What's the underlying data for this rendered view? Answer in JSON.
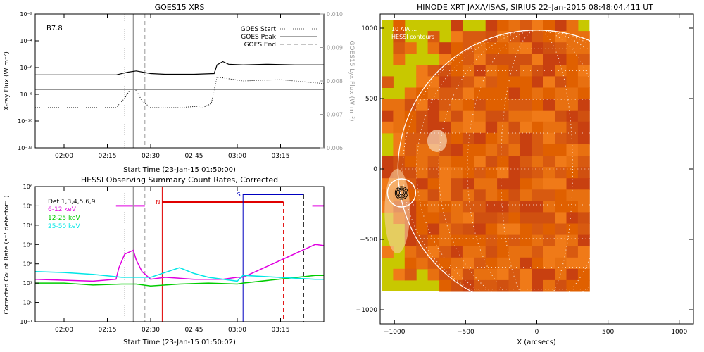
{
  "chart_data": [
    {
      "type": "line",
      "title": "GOES15 XRS",
      "flare_class": "B7.8",
      "xlabel": "Start Time (23-Jan-15 01:50:00)",
      "ylabel": "X-ray Flux (W m⁻²)",
      "ylabel_right": "GOES15 Lyx Flux (W m⁻²)",
      "x_ticks": [
        "02:00",
        "02:15",
        "02:30",
        "02:45",
        "03:00",
        "03:15"
      ],
      "x_tick_minutes": [
        10,
        25,
        40,
        55,
        70,
        85
      ],
      "xlim_minutes": [
        0,
        100
      ],
      "ylog_lim": [
        -12,
        -2
      ],
      "y_ticks": [
        "10⁻¹²",
        "10⁻¹⁰",
        "10⁻⁸",
        "10⁻⁶",
        "10⁻⁴",
        "10⁻²"
      ],
      "y_tick_exp": [
        -12,
        -10,
        -8,
        -6,
        -4,
        -2
      ],
      "y2_ticks": [
        "0.006",
        "0.007",
        "0.008",
        "0.009",
        "0.010"
      ],
      "legend": {
        "start": "GOES Start",
        "peak": "GOES Peak",
        "end": "GOES End"
      },
      "event_minutes": {
        "start": 31,
        "peak": 34,
        "end": 38
      },
      "series": [
        {
          "name": "long",
          "log_flux": [
            [
              0,
              -6.55
            ],
            [
              15,
              -6.55
            ],
            [
              28,
              -6.55
            ],
            [
              32,
              -6.35
            ],
            [
              35,
              -6.25
            ],
            [
              40,
              -6.45
            ],
            [
              45,
              -6.5
            ],
            [
              55,
              -6.5
            ],
            [
              62,
              -6.45
            ],
            [
              63,
              -5.8
            ],
            [
              65,
              -5.55
            ],
            [
              67,
              -5.75
            ],
            [
              72,
              -5.8
            ],
            [
              80,
              -5.75
            ],
            [
              90,
              -5.8
            ],
            [
              100,
              -5.8
            ]
          ]
        },
        {
          "name": "short",
          "log_flux": [
            [
              0,
              -9.0
            ],
            [
              28,
              -9.0
            ],
            [
              31,
              -8.3
            ],
            [
              33,
              -7.6
            ],
            [
              35,
              -7.7
            ],
            [
              37,
              -8.5
            ],
            [
              40,
              -9.0
            ],
            [
              50,
              -9.0
            ],
            [
              56,
              -8.9
            ],
            [
              58,
              -9.0
            ],
            [
              61,
              -8.7
            ],
            [
              63,
              -6.7
            ],
            [
              66,
              -6.8
            ],
            [
              72,
              -7.0
            ],
            [
              85,
              -6.9
            ],
            [
              100,
              -7.2
            ]
          ]
        },
        {
          "name": "lyx",
          "log_flux": [
            [
              0,
              -7.65
            ],
            [
              100,
              -7.65
            ]
          ]
        }
      ]
    },
    {
      "type": "line",
      "title": "HESSI Observing Summary Count Rates, Corrected",
      "xlabel": "Start Time (23-Jan-15 01:50:02)",
      "ylabel": "Corrected Count Rate (s⁻¹ detector⁻¹)",
      "x_ticks": [
        "02:00",
        "02:15",
        "02:30",
        "02:45",
        "03:00",
        "03:15"
      ],
      "x_tick_minutes": [
        10,
        25,
        40,
        55,
        70,
        85
      ],
      "xlim_minutes": [
        0,
        100
      ],
      "ylog_lim": [
        -1,
        6
      ],
      "y_ticks": [
        "10⁻¹",
        "10⁰",
        "10¹",
        "10²",
        "10³",
        "10⁴",
        "10⁵",
        "10⁶"
      ],
      "y_tick_exp": [
        -1,
        0,
        1,
        2,
        3,
        4,
        5,
        6
      ],
      "legend": [
        "Det 1,3,4,5,6,9",
        "6-12 keV",
        "12-25 keV",
        "25-50 keV"
      ],
      "colors": {
        "6-12 keV": "#e000e0",
        "12-25 keV": "#00cc00",
        "25-50 keV": "#00e6e6",
        "night": "#e00000",
        "saa": "#0000c0"
      },
      "flags": {
        "night_label": "N",
        "saa_label": "S"
      },
      "series": [
        {
          "name": "6-12 keV",
          "log_counts": [
            [
              0,
              1.2
            ],
            [
              20,
              1.1
            ],
            [
              28,
              1.2
            ],
            [
              29,
              1.8
            ],
            [
              31,
              2.5
            ],
            [
              34,
              2.7
            ],
            [
              35,
              2.2
            ],
            [
              37,
              1.6
            ],
            [
              40,
              1.2
            ],
            [
              45,
              1.3
            ],
            [
              55,
              1.2
            ],
            [
              65,
              1.2
            ],
            [
              70,
              1.3
            ],
            [
              72,
              1.3
            ],
            [
              97,
              3.0
            ],
            [
              100,
              2.95
            ]
          ]
        },
        {
          "name": "12-25 keV",
          "log_counts": [
            [
              0,
              1.0
            ],
            [
              10,
              1.0
            ],
            [
              20,
              0.9
            ],
            [
              30,
              0.95
            ],
            [
              35,
              0.95
            ],
            [
              40,
              0.85
            ],
            [
              50,
              0.95
            ],
            [
              60,
              1.0
            ],
            [
              70,
              0.95
            ],
            [
              72,
              1.0
            ],
            [
              97,
              1.4
            ],
            [
              100,
              1.4
            ]
          ]
        },
        {
          "name": "25-50 keV",
          "log_counts": [
            [
              0,
              1.6
            ],
            [
              10,
              1.55
            ],
            [
              20,
              1.45
            ],
            [
              30,
              1.3
            ],
            [
              40,
              1.3
            ],
            [
              45,
              1.55
            ],
            [
              50,
              1.8
            ],
            [
              55,
              1.5
            ],
            [
              60,
              1.3
            ],
            [
              70,
              1.1
            ],
            [
              72,
              1.4
            ],
            [
              97,
              1.2
            ],
            [
              100,
              1.2
            ]
          ]
        }
      ],
      "event_minutes": {
        "start": 31,
        "peak": 34,
        "end": 38
      },
      "night_minutes": [
        44,
        86
      ],
      "saa_minutes": [
        72,
        93
      ]
    },
    {
      "type": "heatmap",
      "title": "HINODE XRT JAXA/ISAS, SIRIUS 22-Jan-2015 08:48:04.411 UT",
      "xlabel": "X (arcsecs)",
      "ylabel": "",
      "xlim": [
        -1100,
        1100
      ],
      "ylim": [
        -1100,
        1100
      ],
      "x_ticks": [
        "−1000",
        "−500",
        "0",
        "500",
        "1000"
      ],
      "x_tick_values": [
        -1000,
        -500,
        0,
        500,
        1000
      ],
      "y_ticks": [
        "−1000",
        "−500",
        "0",
        "500",
        "1000"
      ],
      "y_tick_values": [
        -1000,
        -500,
        0,
        500,
        1000
      ],
      "legend": [
        "10 AIA ... ",
        "HESSI contours"
      ],
      "solar_radius_arcsec": 975,
      "image_extent": [
        -1090,
        370,
        -870,
        1060
      ],
      "source_center": [
        -950,
        -170
      ]
    }
  ]
}
